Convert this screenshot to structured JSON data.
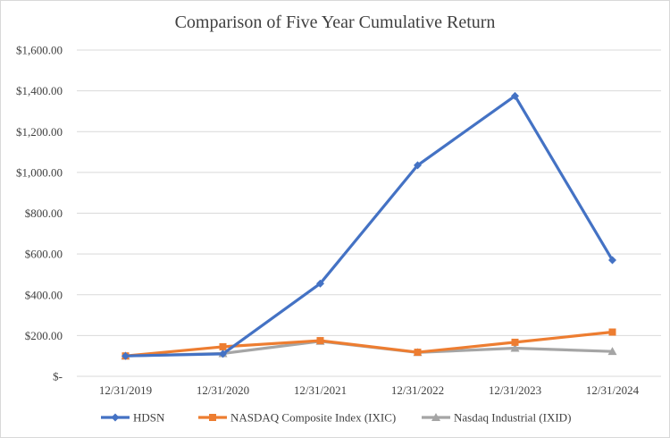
{
  "chart_data": {
    "type": "line",
    "title": "Comparison of Five Year Cumulative Return",
    "categories": [
      "12/31/2019",
      "12/31/2020",
      "12/31/2021",
      "12/31/2022",
      "12/31/2023",
      "12/31/2024"
    ],
    "ylim": [
      0,
      1600
    ],
    "yticks": [
      0,
      200,
      400,
      600,
      800,
      1000,
      1200,
      1400,
      1600
    ],
    "ytick_labels": [
      "$-",
      "$200.00",
      "$400.00",
      "$600.00",
      "$800.00",
      "$1,000.00",
      "$1,200.00",
      "$1,400.00",
      "$1,600.00"
    ],
    "grid": true,
    "legend_position": "bottom",
    "series": [
      {
        "name": "HDSN",
        "color": "#4472c4",
        "marker": "diamond",
        "values": [
          100,
          110,
          455,
          1035,
          1375,
          570
        ]
      },
      {
        "name": "NASDAQ Composite Index (IXIC)",
        "color": "#ed7d31",
        "marker": "square",
        "values": [
          100,
          145,
          175,
          118,
          167,
          217
        ]
      },
      {
        "name": "Nasdaq Industrial (IXID)",
        "color": "#a5a5a5",
        "marker": "triangle",
        "values": [
          100,
          112,
          172,
          117,
          138,
          122
        ]
      }
    ]
  }
}
